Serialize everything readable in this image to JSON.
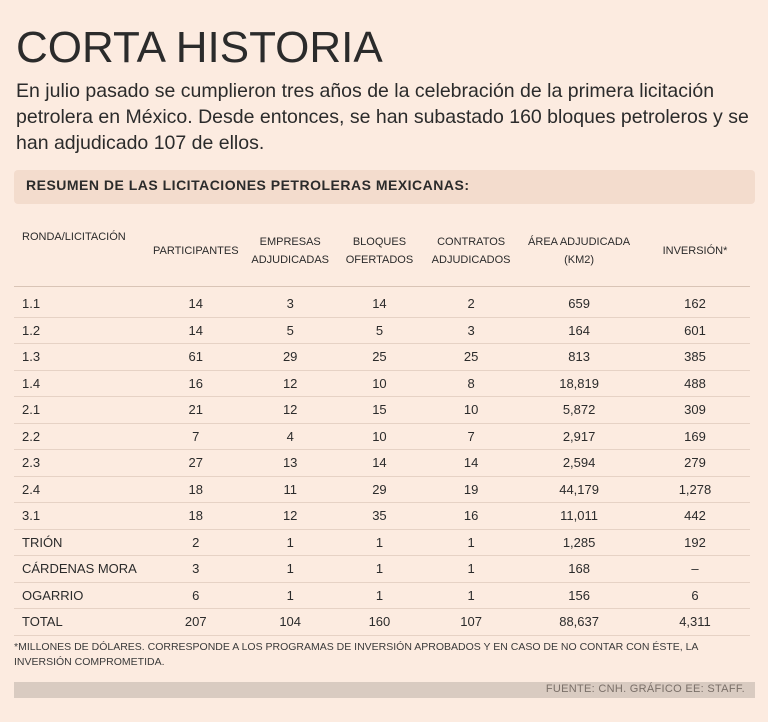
{
  "title": "CORTA HISTORIA",
  "intro": "En julio pasado se cumplieron tres años de la celebración de la primera licitación petrolera en México. Desde entonces, se han subastado 160 bloques petroleros y se han adjudicado 107 de ellos.",
  "subhead": "RESUMEN DE LAS LICITACIONES PETROLERAS MEXICANAS:",
  "table": {
    "headers": [
      [
        "RONDA/LICITACIÓN",
        ""
      ],
      [
        "PARTICIPANTES",
        ""
      ],
      [
        "EMPRESAS",
        "ADJUDICADAS"
      ],
      [
        "BLOQUES",
        "OFERTADOS"
      ],
      [
        "CONTRATOS",
        "ADJUDICADOS"
      ],
      [
        "ÁREA ADJUDICADA",
        "(KM2)"
      ],
      [
        "INVERSIÓN*",
        ""
      ]
    ],
    "rows": [
      [
        "1.1",
        "14",
        "3",
        "14",
        "2",
        "659",
        "162"
      ],
      [
        "1.2",
        "14",
        "5",
        "5",
        "3",
        "164",
        "601"
      ],
      [
        "1.3",
        "61",
        "29",
        "25",
        "25",
        "813",
        "385"
      ],
      [
        "1.4",
        "16",
        "12",
        "10",
        "8",
        "18,819",
        "488"
      ],
      [
        "2.1",
        "21",
        "12",
        "15",
        "10",
        "5,872",
        "309"
      ],
      [
        "2.2",
        "7",
        "4",
        "10",
        "7",
        "2,917",
        "169"
      ],
      [
        "2.3",
        "27",
        "13",
        "14",
        "14",
        "2,594",
        "279"
      ],
      [
        "2.4",
        "18",
        "11",
        "29",
        "19",
        "44,179",
        "1,278"
      ],
      [
        "3.1",
        "18",
        "12",
        "35",
        "16",
        "11,011",
        "442"
      ],
      [
        "TRIÓN",
        "2",
        "1",
        "1",
        "1",
        "1,285",
        "192"
      ],
      [
        "CÁRDENAS MORA",
        "3",
        "1",
        "1",
        "1",
        "168",
        "–"
      ],
      [
        "OGARRIO",
        "6",
        "1",
        "1",
        "1",
        "156",
        "6"
      ],
      [
        "TOTAL",
        "207",
        "104",
        "160",
        "107",
        "88,637",
        "4,311"
      ]
    ]
  },
  "footnote": "*MILLONES DE DÓLARES. CORRESPONDE A LOS PROGRAMAS DE INVERSIÓN APROBADOS Y EN CASO DE NO CONTAR CON ÉSTE, LA INVERSIÓN COMPROMETIDA.",
  "source": "FUENTE: CNH. GRÁFICO EE: STAFF."
}
